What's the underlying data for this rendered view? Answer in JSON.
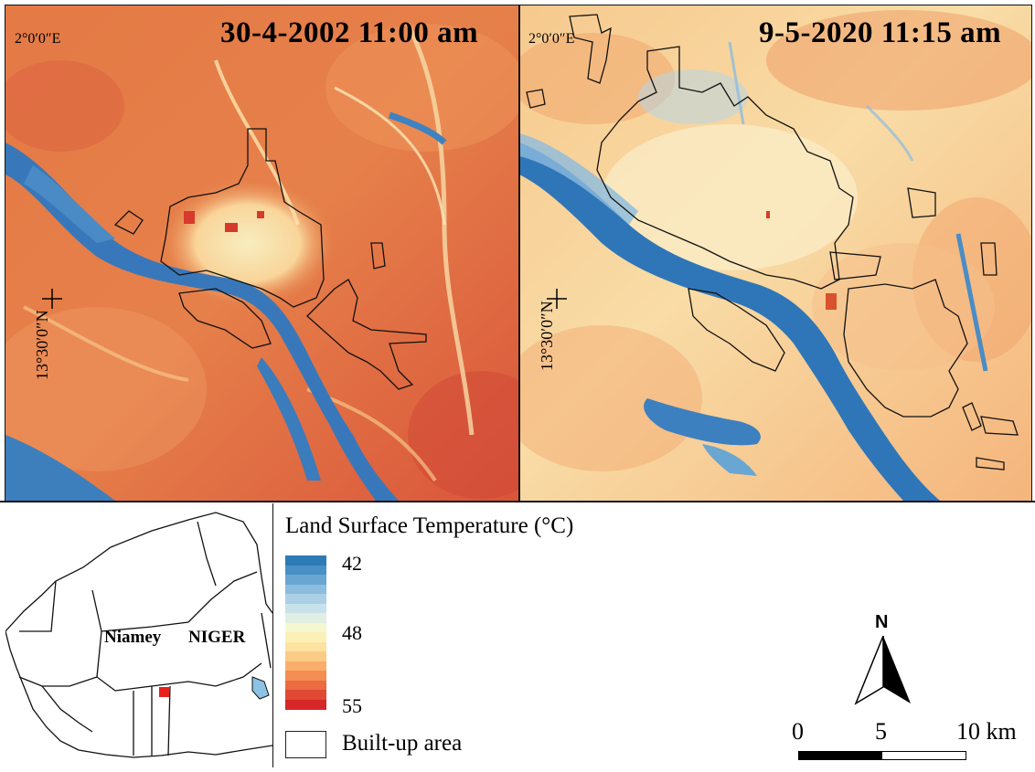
{
  "panels": {
    "left": {
      "date_label": "30-4-2002  11:00 am",
      "lon_label": "2°0′0″E",
      "lat_label": "13°30′0″N"
    },
    "right": {
      "date_label": "9-5-2020 11:15 am",
      "lon_label": "2°0′0″E",
      "lat_label": "13°30′0″N"
    }
  },
  "inset": {
    "city_label": "Niamey",
    "country_label": "NIGER",
    "marker_color": "#e8201a"
  },
  "legend": {
    "title": "Land Surface Temperature (°C)",
    "min_label": "42",
    "mid_label": "48",
    "max_label": "55",
    "colors": [
      "#2c7bb6",
      "#4a90c5",
      "#6aa6d2",
      "#8cbcde",
      "#abd0e6",
      "#c8e2eb",
      "#e1efe3",
      "#f4f7d0",
      "#fbf1b6",
      "#fde2a1",
      "#fccb86",
      "#f9ae6c",
      "#f48e53",
      "#ec6b41",
      "#e04933",
      "#d62728"
    ],
    "builtup_label": "Built-up area"
  },
  "scale": {
    "label_0": "0",
    "label_5": "5",
    "label_10": "10 km"
  },
  "north": {
    "label": "N"
  }
}
